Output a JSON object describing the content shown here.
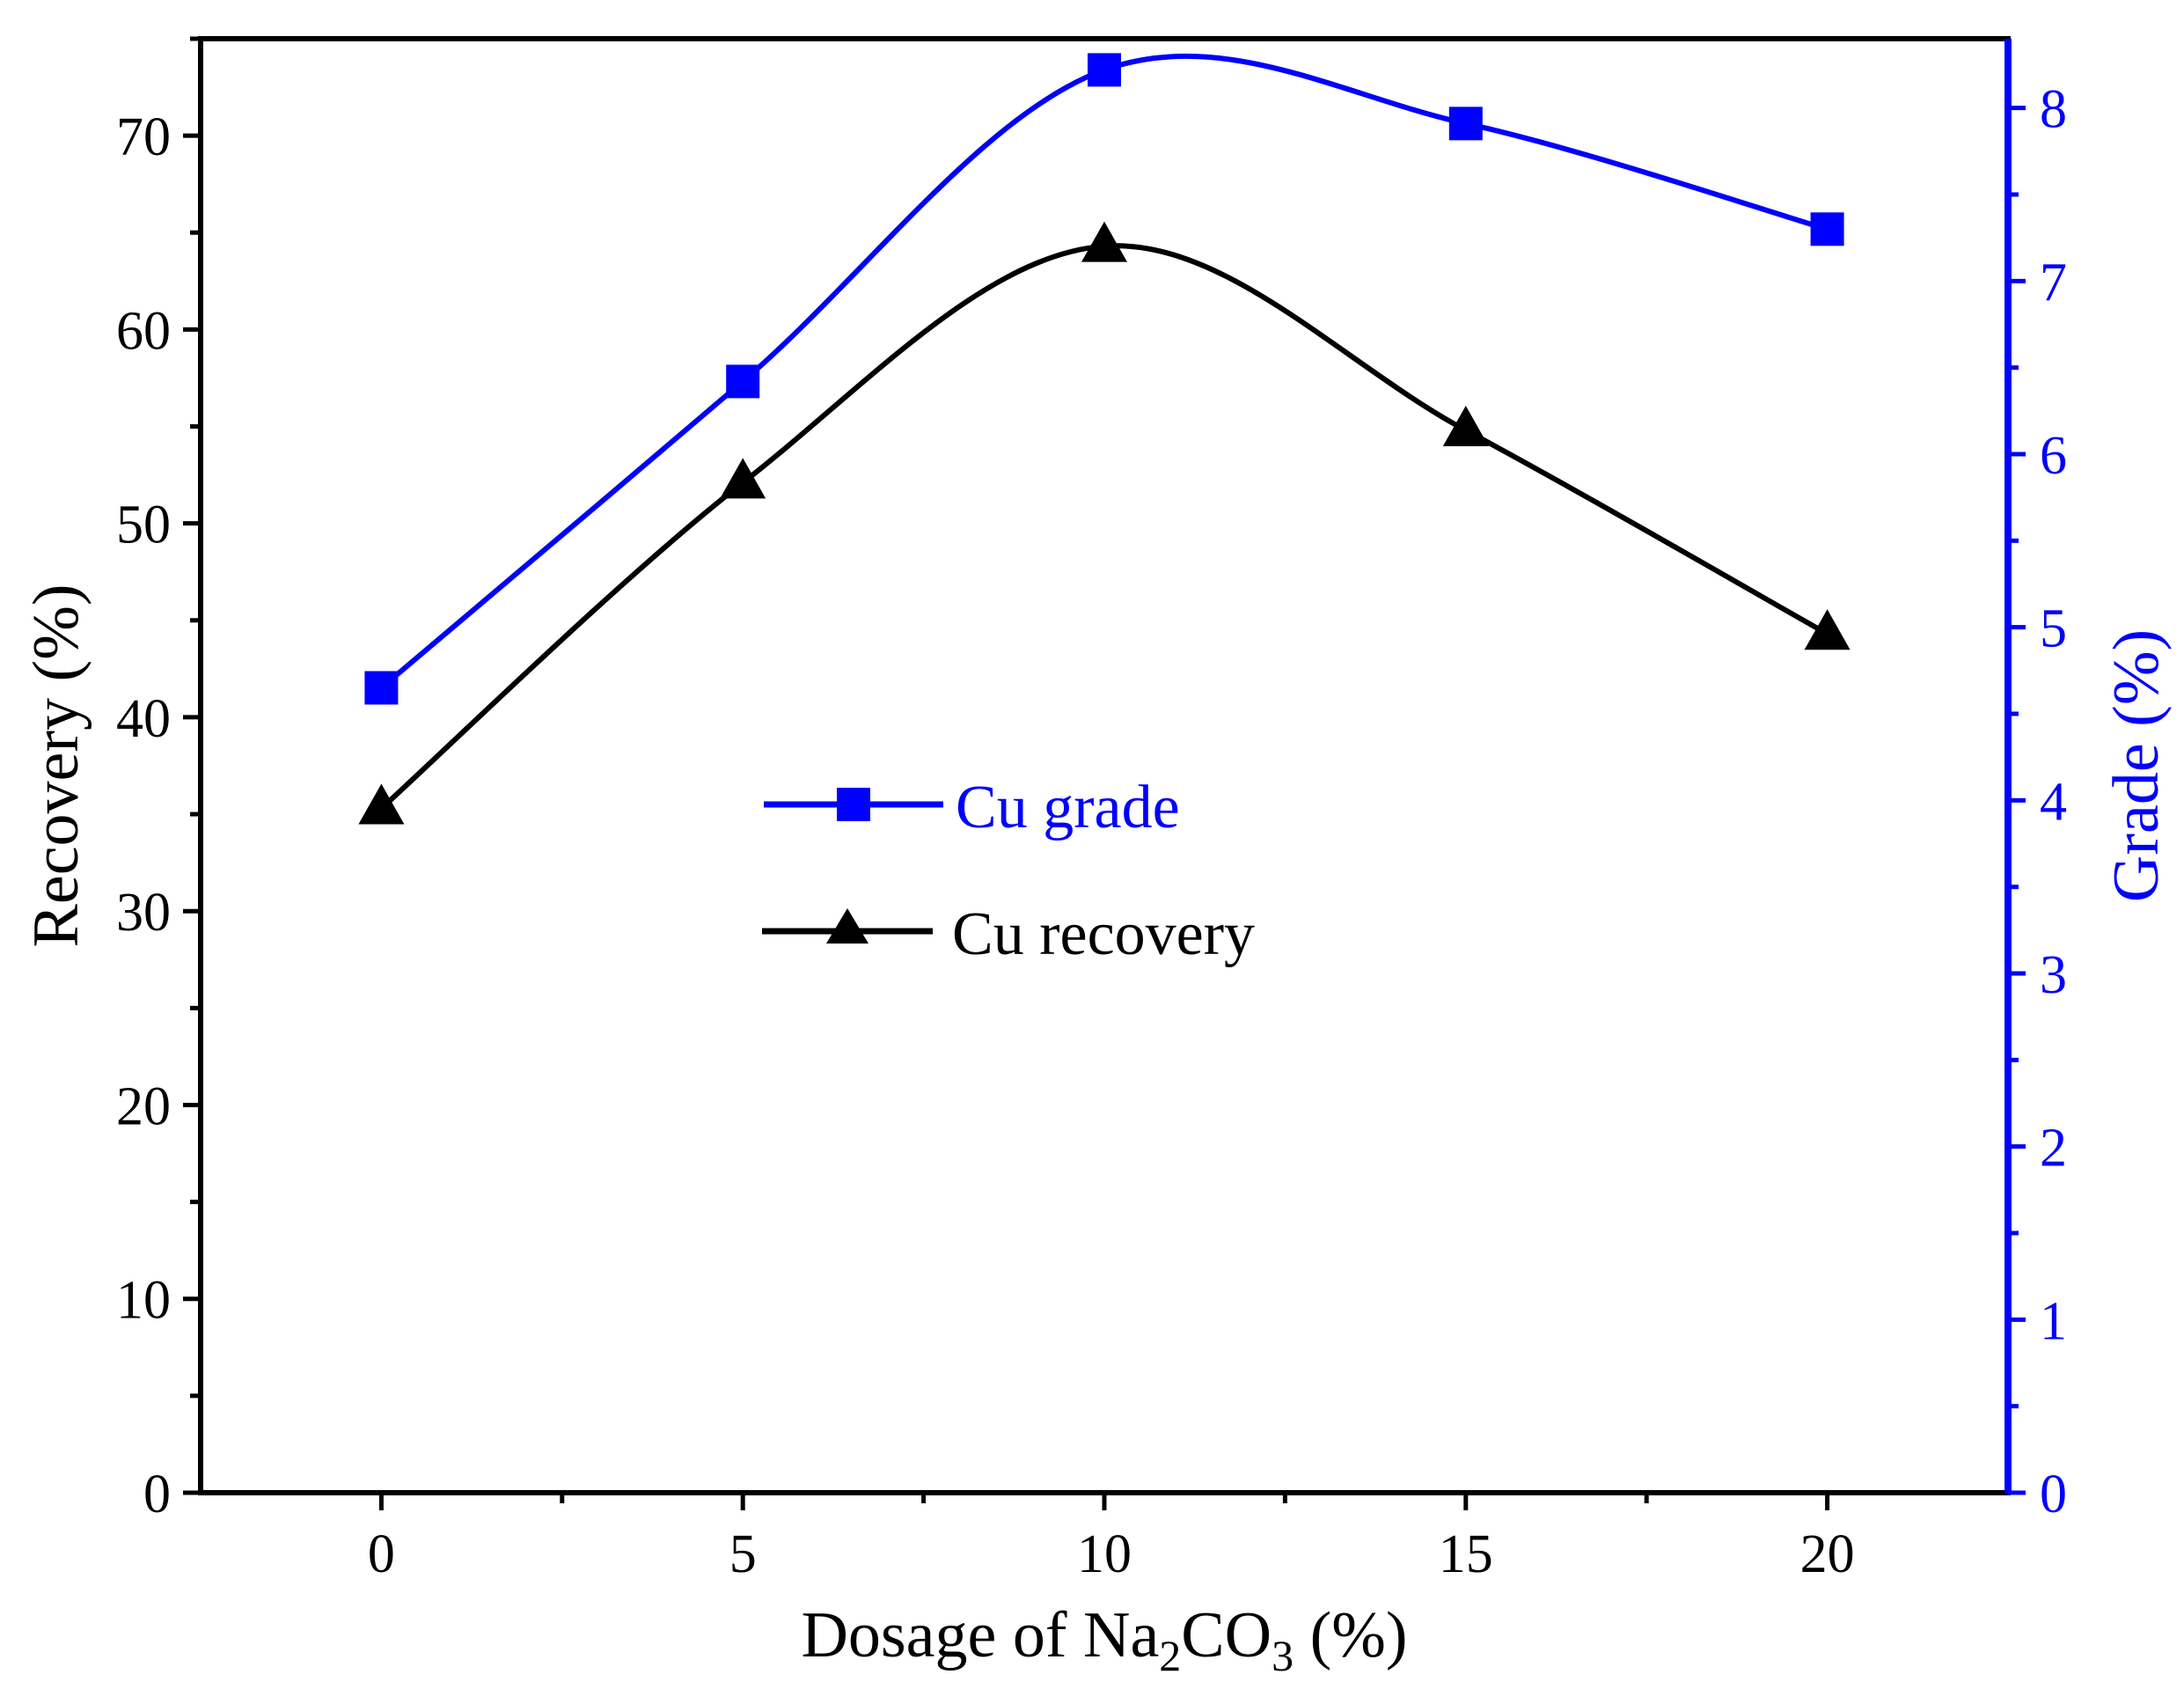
{
  "chart_data": {
    "type": "line",
    "title": "",
    "xlabel": {
      "prefix": "Dosage of Na",
      "sub1": "2",
      "mid": "CO",
      "sub2": "3",
      "suffix": " (%)"
    },
    "ylabel_left": "Recovery (%)",
    "ylabel_right": "Grade (%)",
    "x": [
      0,
      5,
      10,
      15,
      20
    ],
    "xlim": [
      -2.5,
      22.5
    ],
    "xticks": [
      0,
      5,
      10,
      15,
      20
    ],
    "xtick_labels": [
      "0",
      "5",
      "10",
      "15",
      "20"
    ],
    "ylim_left": [
      0,
      75
    ],
    "yticks_left": [
      0,
      10,
      20,
      30,
      40,
      50,
      60,
      70
    ],
    "ytick_labels_left": [
      "0",
      "10",
      "20",
      "30",
      "40",
      "50",
      "60",
      "70"
    ],
    "ylim_right": [
      0,
      8.4
    ],
    "yticks_right": [
      0,
      1,
      2,
      3,
      4,
      5,
      6,
      7,
      8
    ],
    "ytick_labels_right": [
      "0",
      "1",
      "2",
      "3",
      "4",
      "5",
      "6",
      "7",
      "8"
    ],
    "grid": false,
    "legend_position": "center",
    "series": [
      {
        "name": "Cu grade",
        "axis": "right",
        "marker": "square",
        "color": "#0000ff",
        "values": [
          4.65,
          6.42,
          8.22,
          7.91,
          7.3
        ]
      },
      {
        "name": "Cu recovery",
        "axis": "left",
        "marker": "triangle",
        "color": "#000000",
        "values": [
          35.3,
          52.1,
          64.3,
          54.8,
          44.3
        ]
      }
    ]
  }
}
